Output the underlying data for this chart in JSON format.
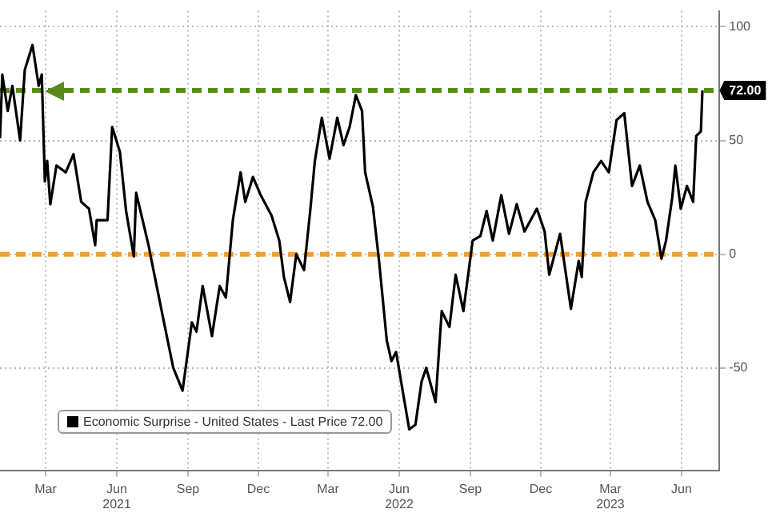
{
  "chart_data": {
    "type": "line",
    "x": [
      "2021-01-01",
      "2021-01-04",
      "2021-01-11",
      "2021-01-17",
      "2021-01-27",
      "2021-02-02",
      "2021-02-12",
      "2021-02-20",
      "2021-02-24",
      "2021-02-28",
      "2021-03-03",
      "2021-03-07",
      "2021-03-15",
      "2021-03-27",
      "2021-04-06",
      "2021-04-16",
      "2021-04-26",
      "2021-05-04",
      "2021-05-06",
      "2021-05-20",
      "2021-05-26",
      "2021-06-05",
      "2021-06-13",
      "2021-06-23",
      "2021-06-26",
      "2021-07-12",
      "2021-07-16",
      "2021-08-01",
      "2021-08-13",
      "2021-08-25",
      "2021-09-06",
      "2021-09-12",
      "2021-09-20",
      "2021-10-02",
      "2021-10-12",
      "2021-10-20",
      "2021-10-29",
      "2021-11-08",
      "2021-11-14",
      "2021-11-24",
      "2021-12-04",
      "2021-12-18",
      "2021-12-28",
      "2022-01-03",
      "2022-01-11",
      "2022-01-19",
      "2022-01-29",
      "2022-02-06",
      "2022-02-12",
      "2022-02-21",
      "2022-03-03",
      "2022-03-13",
      "2022-03-21",
      "2022-03-29",
      "2022-04-06",
      "2022-04-14",
      "2022-04-18",
      "2022-04-28",
      "2022-05-06",
      "2022-05-16",
      "2022-05-22",
      "2022-05-28",
      "2022-06-07",
      "2022-06-14",
      "2022-06-22",
      "2022-06-30",
      "2022-07-06",
      "2022-07-18",
      "2022-07-26",
      "2022-08-05",
      "2022-08-13",
      "2022-08-23",
      "2022-09-04",
      "2022-09-14",
      "2022-09-22",
      "2022-09-30",
      "2022-10-11",
      "2022-10-21",
      "2022-10-31",
      "2022-11-10",
      "2022-11-26",
      "2022-12-06",
      "2022-12-12",
      "2022-12-26",
      "2023-01-09",
      "2023-01-19",
      "2023-01-23",
      "2023-01-28",
      "2023-02-07",
      "2023-02-17",
      "2023-02-27",
      "2023-03-09",
      "2023-03-19",
      "2023-03-29",
      "2023-04-08",
      "2023-04-18",
      "2023-04-28",
      "2023-05-06",
      "2023-05-12",
      "2023-05-20",
      "2023-05-24",
      "2023-05-31",
      "2023-06-08",
      "2023-06-16",
      "2023-06-20",
      "2023-06-26",
      "2023-06-28"
    ],
    "series": [
      {
        "name": "Economic Surprise - United States - Last Price 72.00",
        "color": "#000000",
        "values": [
          51,
          79,
          63,
          74,
          50,
          81,
          92,
          74,
          79,
          32,
          41,
          22,
          39,
          36,
          44,
          23,
          20,
          4,
          15,
          15,
          56,
          45,
          19,
          -1,
          27,
          4,
          -3,
          -30,
          -50,
          -60,
          -30,
          -34,
          -14,
          -36,
          -14,
          -19,
          15,
          36,
          23,
          34,
          26,
          17,
          6,
          -10,
          -21,
          0,
          -7,
          19,
          41,
          60,
          42,
          60,
          48,
          56,
          70,
          63,
          36,
          21,
          -3,
          -38,
          -47,
          -43,
          -63,
          -77,
          -75,
          -56,
          -50,
          -65,
          -25,
          -32,
          -9,
          -25,
          6,
          8,
          19,
          6,
          26,
          9,
          22,
          10,
          20,
          10,
          -9,
          9,
          -24,
          -3,
          -10,
          23,
          36,
          41,
          36,
          59,
          62,
          30,
          39,
          23,
          15,
          -2,
          6,
          25,
          39,
          20,
          30,
          23,
          52,
          54,
          72
        ]
      }
    ],
    "xlim": [
      "2021-01-01",
      "2023-07-20"
    ],
    "xticks": [
      {
        "value": "2021-03-01",
        "label": "Mar"
      },
      {
        "value": "2021-06-01",
        "label": "Jun\n2021"
      },
      {
        "value": "2021-09-01",
        "label": "Sep"
      },
      {
        "value": "2021-12-01",
        "label": "Dec"
      },
      {
        "value": "2022-03-01",
        "label": "Mar"
      },
      {
        "value": "2022-06-01",
        "label": "Jun\n2022"
      },
      {
        "value": "2022-09-01",
        "label": "Sep"
      },
      {
        "value": "2022-12-01",
        "label": "Dec"
      },
      {
        "value": "2023-03-01",
        "label": "Mar\n2023"
      },
      {
        "value": "2023-06-01",
        "label": "Jun"
      }
    ],
    "ylim": [
      -95,
      107
    ],
    "yticks": [
      100,
      50,
      0,
      -50
    ],
    "grid": true,
    "legend": "bottom left",
    "ref_lines": [
      {
        "axis": "y",
        "value": 0,
        "color": "#f0a030",
        "line_style": "dashed"
      },
      {
        "axis": "y",
        "value": 72,
        "color": "#5a8a1a",
        "line_style": "dashed"
      }
    ],
    "annotations": [
      {
        "text": "72.00",
        "x": "2023-06-28",
        "y": 72
      }
    ]
  }
}
